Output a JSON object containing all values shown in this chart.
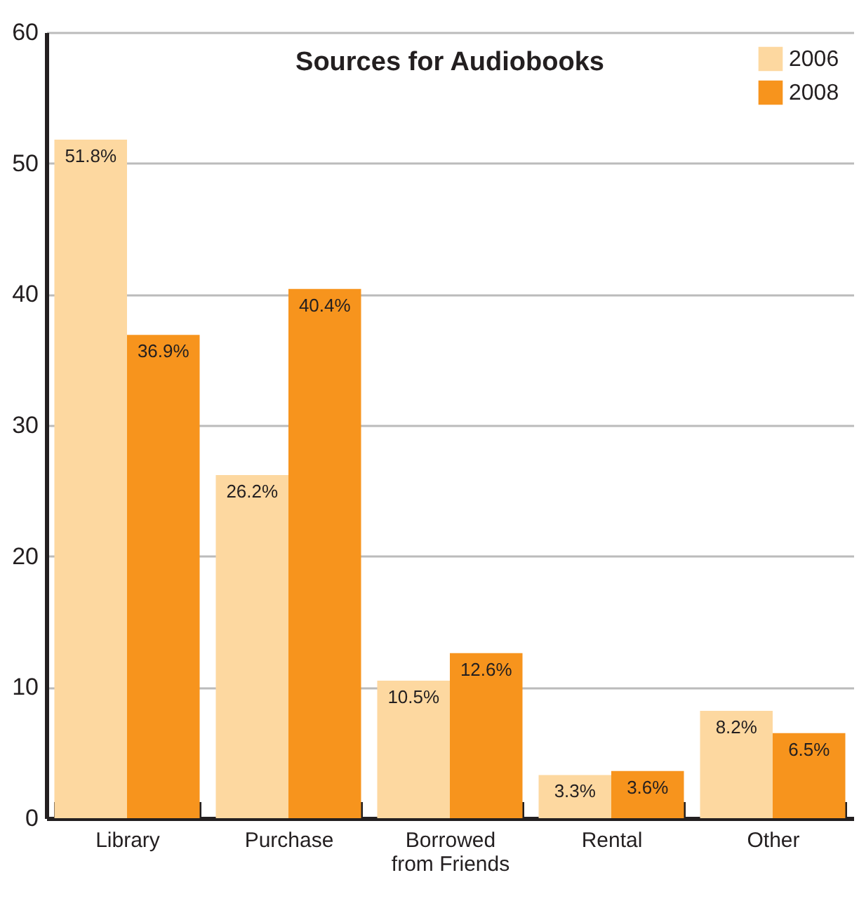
{
  "chart_data": {
    "type": "bar",
    "title": "Sources for Audiobooks",
    "categories": [
      "Library",
      "Purchase",
      "Borrowed from Friends",
      "Rental",
      "Other"
    ],
    "series": [
      {
        "name": "2006",
        "color": "#fdd8a0",
        "values": [
          51.8,
          26.2,
          10.5,
          3.3,
          8.2
        ],
        "value_labels": [
          "51.8%",
          "26.2%",
          "10.5%",
          "3.3%",
          "8.2%"
        ]
      },
      {
        "name": "2008",
        "color": "#f7941d",
        "values": [
          36.9,
          40.4,
          12.6,
          3.6,
          6.5
        ],
        "value_labels": [
          "36.9%",
          "40.4%",
          "12.6%",
          "3.6%",
          "6.5%"
        ]
      }
    ],
    "ylim": [
      0,
      60
    ],
    "yticks": [
      0,
      10,
      20,
      30,
      40,
      50,
      60
    ],
    "grid": "y",
    "legend": "top right"
  }
}
